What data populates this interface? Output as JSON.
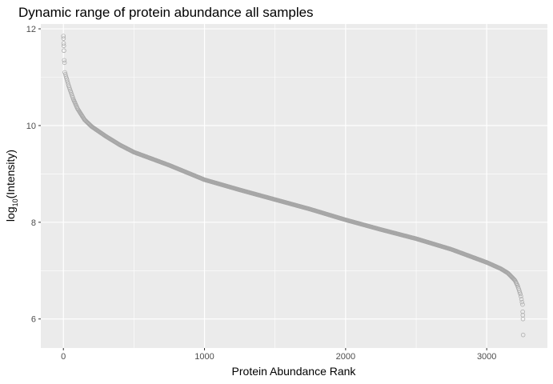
{
  "chart_data": {
    "type": "scatter",
    "title": "Dynamic range of protein abundance all samples",
    "xlabel": "Protein Abundance Rank",
    "ylabel": {
      "base": "log",
      "subscript": "10",
      "rest": "(Intensity)"
    },
    "xlim": [
      -160,
      3430
    ],
    "ylim": [
      5.4,
      12.1
    ],
    "x_ticks": [
      0,
      1000,
      2000,
      3000
    ],
    "x_tick_labels": [
      "0",
      "1000",
      "2000",
      "3000"
    ],
    "y_ticks": [
      6,
      8,
      10,
      12
    ],
    "y_tick_labels": [
      "6",
      "8",
      "10",
      "12"
    ],
    "grid": true,
    "n_points": 3258,
    "point_style": {
      "shape": "hollow-circle",
      "color": "#a6a6a6"
    },
    "curve_anchors": [
      [
        0,
        11.85
      ],
      [
        1,
        11.8
      ],
      [
        2,
        11.75
      ],
      [
        3,
        11.65
      ],
      [
        4,
        11.55
      ],
      [
        6,
        11.35
      ],
      [
        8,
        11.3
      ],
      [
        10,
        11.1
      ],
      [
        20,
        11.0
      ],
      [
        40,
        10.8
      ],
      [
        70,
        10.55
      ],
      [
        100,
        10.35
      ],
      [
        150,
        10.12
      ],
      [
        200,
        9.98
      ],
      [
        300,
        9.78
      ],
      [
        400,
        9.6
      ],
      [
        500,
        9.45
      ],
      [
        750,
        9.18
      ],
      [
        1000,
        8.88
      ],
      [
        1250,
        8.67
      ],
      [
        1500,
        8.47
      ],
      [
        1750,
        8.27
      ],
      [
        2000,
        8.05
      ],
      [
        2250,
        7.85
      ],
      [
        2500,
        7.66
      ],
      [
        2750,
        7.44
      ],
      [
        3000,
        7.17
      ],
      [
        3100,
        7.04
      ],
      [
        3150,
        6.95
      ],
      [
        3200,
        6.8
      ],
      [
        3220,
        6.68
      ],
      [
        3240,
        6.5
      ],
      [
        3250,
        6.35
      ],
      [
        3255,
        6.2
      ],
      [
        3256,
        6.1
      ],
      [
        3257,
        6.0
      ],
      [
        3258,
        5.67
      ]
    ],
    "outlier_points": [
      [
        0,
        11.85
      ],
      [
        1,
        11.8
      ],
      [
        2,
        11.7
      ],
      [
        3,
        11.65
      ],
      [
        4,
        11.55
      ],
      [
        6,
        11.35
      ],
      [
        8,
        11.3
      ],
      [
        3254,
        6.3
      ],
      [
        3255,
        6.15
      ],
      [
        3256,
        6.08
      ],
      [
        3257,
        6.0
      ],
      [
        3258,
        5.67
      ]
    ]
  }
}
